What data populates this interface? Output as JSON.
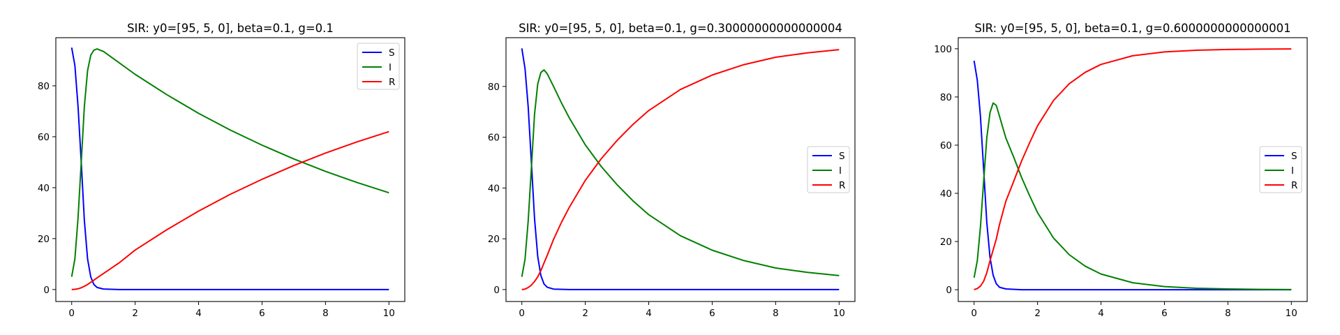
{
  "chart_data": [
    {
      "type": "line",
      "title": "SIR: y0=[95, 5, 0], beta=0.1, g=0.1",
      "xlim": [
        -0.5,
        10.5
      ],
      "ylim": [
        -4.7,
        98.9
      ],
      "xticks": [
        0,
        2,
        4,
        6,
        8,
        10
      ],
      "yticks": [
        0,
        20,
        40,
        60,
        80
      ],
      "legend_position": "upper right",
      "grid": false,
      "series": [
        {
          "name": "S",
          "color": "#0000ff",
          "x": [
            0,
            0.1,
            0.2,
            0.3,
            0.4,
            0.5,
            0.6,
            0.7,
            0.8,
            1.0,
            1.5,
            2,
            4,
            6,
            8,
            10
          ],
          "y": [
            95,
            88,
            72,
            50,
            27,
            12,
            5,
            2,
            0.8,
            0.2,
            0,
            0,
            0,
            0,
            0,
            0
          ]
        },
        {
          "name": "I",
          "color": "#008000",
          "x": [
            0,
            0.1,
            0.2,
            0.3,
            0.4,
            0.5,
            0.6,
            0.7,
            0.8,
            0.9,
            1.0,
            1.5,
            2,
            3,
            4,
            5,
            6,
            7,
            8,
            9,
            10
          ],
          "y": [
            5,
            12,
            28,
            50,
            72,
            86,
            92,
            94,
            94.5,
            94,
            93.5,
            89,
            84.5,
            76.5,
            69.2,
            62.6,
            56.7,
            51.3,
            46.4,
            42,
            38
          ]
        },
        {
          "name": "R",
          "color": "#ff0000",
          "x": [
            0,
            0.1,
            0.2,
            0.3,
            0.4,
            0.5,
            0.6,
            0.7,
            0.8,
            1.0,
            1.5,
            2,
            3,
            4,
            5,
            6,
            7,
            8,
            9,
            10
          ],
          "y": [
            0,
            0.1,
            0.3,
            0.7,
            1.3,
            2,
            2.8,
            3.7,
            4.6,
            6.3,
            10.5,
            15.5,
            23.5,
            30.8,
            37.4,
            43.3,
            48.7,
            53.6,
            58,
            62
          ]
        }
      ]
    },
    {
      "type": "line",
      "title": "SIR: y0=[95, 5, 0], beta=0.1, g=0.30000000000000004",
      "xlim": [
        -0.5,
        10.5
      ],
      "ylim": [
        -4.7,
        99.2
      ],
      "xticks": [
        0,
        2,
        4,
        6,
        8,
        10
      ],
      "yticks": [
        0,
        20,
        40,
        60,
        80
      ],
      "legend_position": "center right",
      "grid": false,
      "series": [
        {
          "name": "S",
          "color": "#0000ff",
          "x": [
            0,
            0.1,
            0.2,
            0.3,
            0.4,
            0.5,
            0.6,
            0.7,
            0.8,
            1.0,
            1.5,
            2,
            4,
            6,
            8,
            10
          ],
          "y": [
            95,
            87,
            72,
            50,
            28,
            13,
            5.5,
            2.2,
            0.9,
            0.2,
            0,
            0,
            0,
            0,
            0,
            0
          ]
        },
        {
          "name": "I",
          "color": "#008000",
          "x": [
            0,
            0.1,
            0.2,
            0.3,
            0.4,
            0.5,
            0.6,
            0.7,
            0.8,
            1.0,
            1.25,
            1.5,
            2,
            2.5,
            3,
            3.5,
            4,
            5,
            6,
            7,
            8,
            9,
            10
          ],
          "y": [
            5,
            12,
            27,
            48,
            69,
            81,
            85.5,
            86.5,
            85,
            80,
            73.5,
            67.5,
            57,
            48.5,
            41.3,
            35,
            29.5,
            21.2,
            15.5,
            11.4,
            8.5,
            6.8,
            5.5
          ]
        },
        {
          "name": "R",
          "color": "#ff0000",
          "x": [
            0,
            0.1,
            0.2,
            0.3,
            0.4,
            0.5,
            0.6,
            0.7,
            0.8,
            1.0,
            1.25,
            1.5,
            2,
            2.5,
            3,
            3.5,
            4,
            5,
            6,
            7,
            8,
            9,
            10
          ],
          "y": [
            0,
            0.2,
            0.8,
            1.8,
            3.2,
            5,
            7.5,
            10.5,
            13.5,
            19.8,
            26.5,
            32.5,
            43,
            51.5,
            58.7,
            65,
            70.5,
            78.8,
            84.5,
            88.6,
            91.5,
            93.2,
            94.5
          ]
        }
      ]
    },
    {
      "type": "line",
      "title": "SIR: y0=[95, 5, 0], beta=0.1, g=0.6000000000000001",
      "xlim": [
        -0.5,
        10.5
      ],
      "ylim": [
        -4.9,
        104.6
      ],
      "xticks": [
        0,
        2,
        4,
        6,
        8,
        10
      ],
      "yticks": [
        0,
        20,
        40,
        60,
        80,
        100
      ],
      "legend_position": "center right",
      "grid": false,
      "series": [
        {
          "name": "S",
          "color": "#0000ff",
          "x": [
            0,
            0.1,
            0.2,
            0.3,
            0.4,
            0.5,
            0.6,
            0.7,
            0.8,
            1.0,
            1.5,
            2,
            4,
            6,
            8,
            10
          ],
          "y": [
            95,
            87,
            72,
            50,
            28,
            13.5,
            6,
            2.5,
            1,
            0.3,
            0,
            0,
            0,
            0,
            0,
            0
          ]
        },
        {
          "name": "I",
          "color": "#008000",
          "x": [
            0,
            0.1,
            0.2,
            0.3,
            0.4,
            0.5,
            0.6,
            0.7,
            0.8,
            1.0,
            1.25,
            1.5,
            1.75,
            2,
            2.5,
            3,
            3.5,
            4,
            5,
            6,
            7,
            8,
            9,
            10
          ],
          "y": [
            5,
            12,
            26,
            45,
            63,
            73.5,
            77.5,
            76.5,
            72,
            63,
            55,
            46.5,
            39,
            32,
            21.5,
            14.5,
            9.8,
            6.5,
            2.9,
            1.3,
            0.6,
            0.3,
            0.15,
            0.05
          ]
        },
        {
          "name": "R",
          "color": "#ff0000",
          "x": [
            0,
            0.1,
            0.2,
            0.3,
            0.4,
            0.5,
            0.6,
            0.7,
            0.8,
            1.0,
            1.25,
            1.5,
            1.75,
            2,
            2.5,
            3,
            3.5,
            4,
            5,
            6,
            7,
            8,
            9,
            10
          ],
          "y": [
            0,
            0.5,
            1.5,
            3.5,
            7,
            12,
            16.5,
            21,
            27,
            36.7,
            45,
            53.5,
            61,
            68,
            78.5,
            85.5,
            90.2,
            93.5,
            97.1,
            98.7,
            99.4,
            99.7,
            99.85,
            99.95
          ]
        }
      ]
    }
  ]
}
